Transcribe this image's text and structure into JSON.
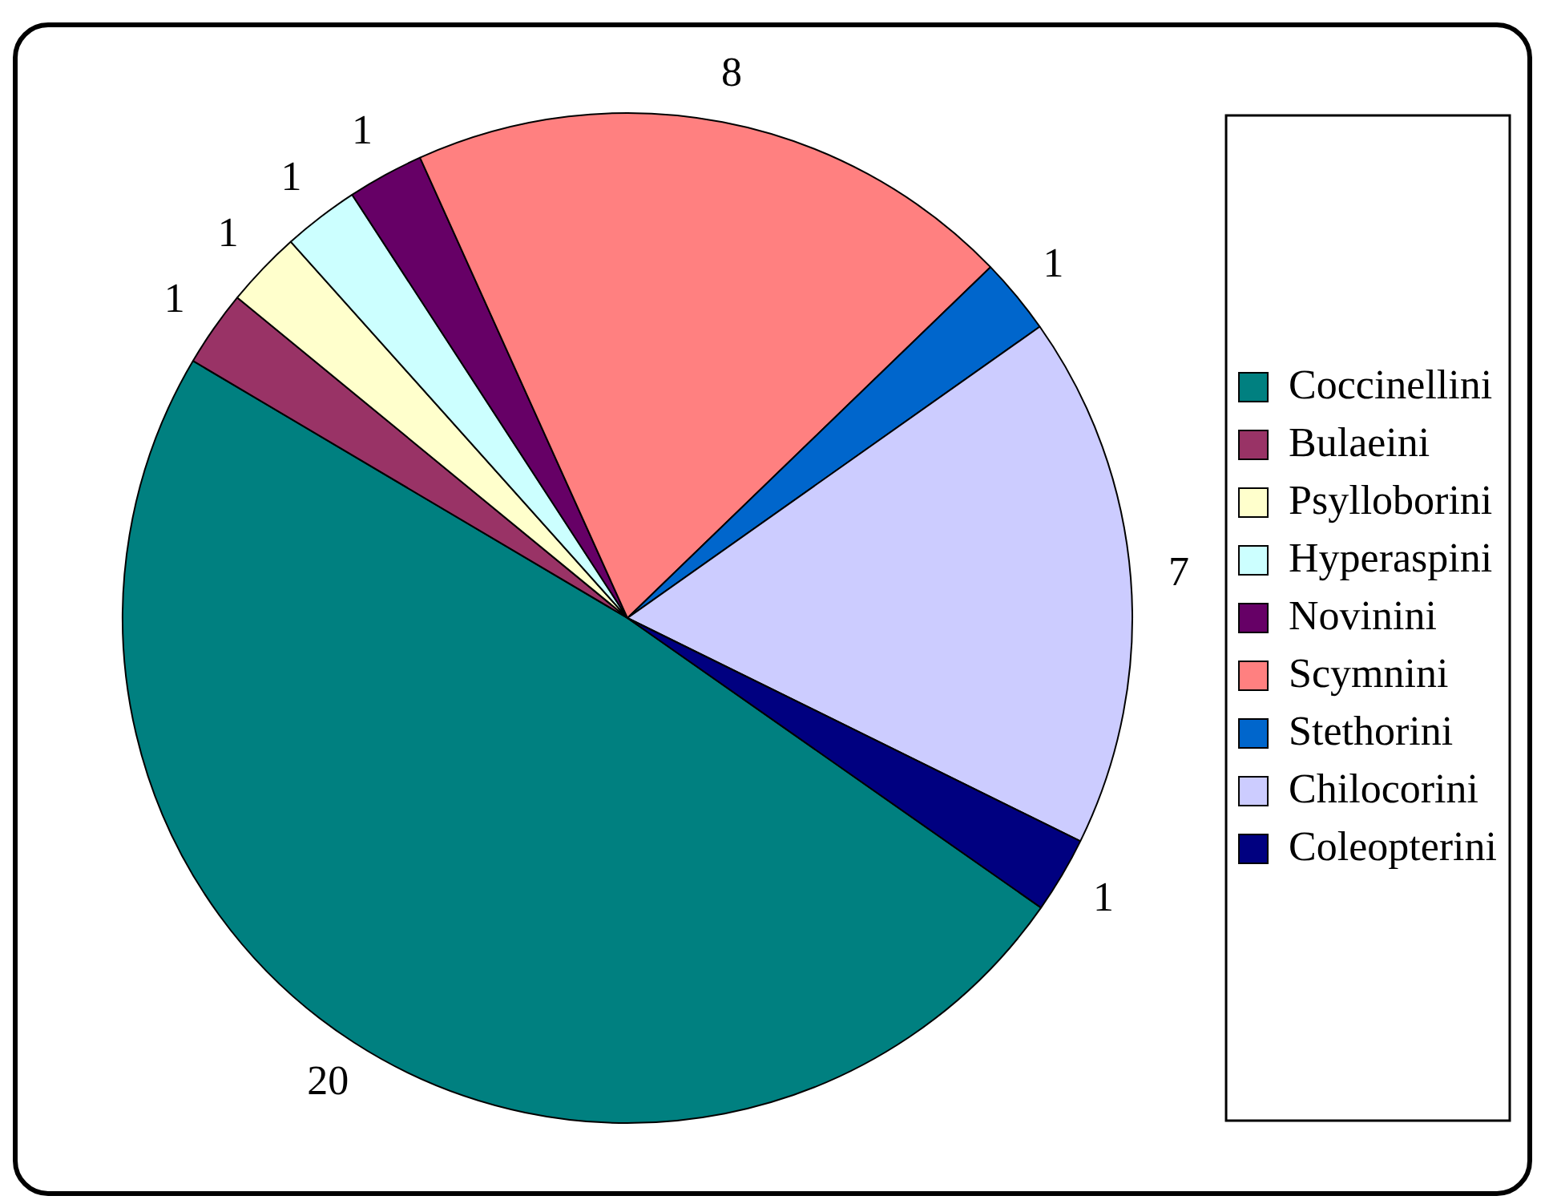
{
  "chart_data": {
    "type": "pie",
    "categories": [
      "Coccinellini",
      "Bulaeini",
      "Psylloborini",
      "Hyperaspini",
      "Novinini",
      "Scymnini",
      "Stethorini",
      "Chilocorini",
      "Coleopterini"
    ],
    "values": [
      20,
      1,
      1,
      1,
      1,
      8,
      1,
      7,
      1
    ],
    "colors": [
      "#008080",
      "#993366",
      "#ffffcc",
      "#ccffff",
      "#660066",
      "#ff8080",
      "#0066cc",
      "#ccccff",
      "#000080"
    ],
    "data_labels": true,
    "legend": "right"
  }
}
